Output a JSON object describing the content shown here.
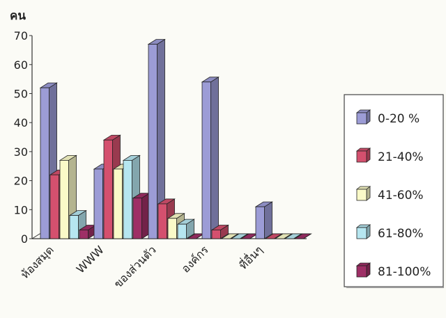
{
  "chart_data": {
    "type": "bar",
    "title": "",
    "ylabel": "คน",
    "xlabel": "",
    "ylim": [
      0,
      70
    ],
    "yticks": [
      0,
      10,
      20,
      30,
      40,
      50,
      60,
      70
    ],
    "categories": [
      "ห้องสมุด",
      "WWW",
      "ของส่วนตัว",
      "องค์กร",
      "ที่อื่นๆ"
    ],
    "series": [
      {
        "name": "0-20 %",
        "color": "#9c9cd6",
        "values": [
          52,
          24,
          67,
          54,
          11
        ]
      },
      {
        "name": "21-40%",
        "color": "#d4506e",
        "values": [
          22,
          34,
          12,
          3,
          0
        ]
      },
      {
        "name": "41-60%",
        "color": "#fafac8",
        "values": [
          27,
          24,
          7,
          0,
          0
        ]
      },
      {
        "name": "61-80%",
        "color": "#b6e6f0",
        "values": [
          8,
          27,
          5,
          0,
          0
        ]
      },
      {
        "name": "81-100%",
        "color": "#9e2f66",
        "values": [
          3,
          14,
          0,
          0,
          0
        ]
      }
    ],
    "grid": false,
    "legend_position": "right"
  }
}
